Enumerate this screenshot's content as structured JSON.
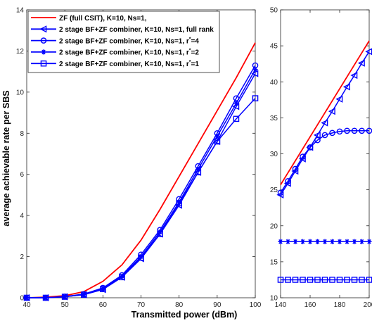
{
  "figure": {
    "ylabel": "average achievable rate per SBS",
    "xlabel": "Transmitted power (dBm)"
  },
  "legend": [
    {
      "label": "ZF (full CSIT), K=10, Ns=1,",
      "color": "#ff0000",
      "marker": "none"
    },
    {
      "label": "2 stage BF+ZF combiner, K=10, Ns=1, full rank",
      "color": "#0000ff",
      "marker": "triangle-left"
    },
    {
      "label_pre": "2 stage BF+ZF combiner, K=10, Ns=1, r",
      "label_sup": "*",
      "label_post": "=4",
      "color": "#0000ff",
      "marker": "circle"
    },
    {
      "label_pre": "2 stage BF+ZF combiner, K=10, Ns=1, r",
      "label_sup": "*",
      "label_post": "=2",
      "color": "#0000ff",
      "marker": "asterisk"
    },
    {
      "label_pre": "2 stage BF+ZF combiner, K=10, Ns=1, r",
      "label_sup": "*",
      "label_post": "=1",
      "color": "#0000ff",
      "marker": "square"
    }
  ],
  "chart_data": [
    {
      "type": "line",
      "legend_position": "top-left",
      "grid": false,
      "xlim": [
        40,
        100
      ],
      "ylim": [
        0,
        14
      ],
      "xticks": [
        40,
        50,
        60,
        70,
        80,
        90,
        100
      ],
      "yticks": [
        0,
        2,
        4,
        6,
        8,
        10,
        12,
        14
      ],
      "series": [
        {
          "name": "ZF (full CSIT), K=10, Ns=1,",
          "color": "#ff0000",
          "marker": "none",
          "x": [
            40,
            45,
            50,
            55,
            60,
            65,
            70,
            75,
            80,
            85,
            90,
            95,
            100
          ],
          "y": [
            0.0,
            0.03,
            0.1,
            0.3,
            0.8,
            1.6,
            2.8,
            4.3,
            5.9,
            7.5,
            9.1,
            10.7,
            12.4
          ]
        },
        {
          "name": "2 stage BF+ZF combiner, K=10, Ns=1, full rank",
          "color": "#0000ff",
          "marker": "triangle-left",
          "x": [
            40,
            45,
            50,
            55,
            60,
            65,
            70,
            75,
            80,
            85,
            90,
            95,
            100
          ],
          "y": [
            0.0,
            0.0,
            0.05,
            0.15,
            0.4,
            1.0,
            1.9,
            3.1,
            4.5,
            6.1,
            7.6,
            9.3,
            10.9
          ]
        },
        {
          "name": "2 stage BF+ZF combiner, K=10, Ns=1, r*=4",
          "color": "#0000ff",
          "marker": "circle",
          "x": [
            40,
            45,
            50,
            55,
            60,
            65,
            70,
            75,
            80,
            85,
            90,
            95,
            100
          ],
          "y": [
            0.0,
            0.0,
            0.06,
            0.18,
            0.48,
            1.1,
            2.1,
            3.3,
            4.8,
            6.4,
            8.0,
            9.7,
            11.3
          ]
        },
        {
          "name": "2 stage BF+ZF combiner, K=10, Ns=1, r*=2",
          "color": "#0000ff",
          "marker": "asterisk",
          "x": [
            40,
            45,
            50,
            55,
            60,
            65,
            70,
            75,
            80,
            85,
            90,
            95,
            100
          ],
          "y": [
            0.0,
            0.0,
            0.05,
            0.16,
            0.44,
            1.05,
            2.0,
            3.2,
            4.65,
            6.25,
            7.85,
            9.45,
            11.1
          ]
        },
        {
          "name": "2 stage BF+ZF combiner, K=10, Ns=1, r*=1",
          "color": "#0000ff",
          "marker": "square",
          "x": [
            40,
            45,
            50,
            55,
            60,
            65,
            70,
            75,
            80,
            85,
            90,
            95,
            100
          ],
          "y": [
            0.0,
            0.0,
            0.05,
            0.15,
            0.42,
            1.0,
            1.95,
            3.1,
            4.6,
            6.1,
            7.6,
            8.7,
            9.7
          ]
        }
      ]
    },
    {
      "type": "line",
      "grid": false,
      "xlim": [
        140,
        200
      ],
      "ylim": [
        10,
        50
      ],
      "xticks": [
        140,
        160,
        180,
        200
      ],
      "yticks": [
        10,
        15,
        20,
        25,
        30,
        35,
        40,
        45,
        50
      ],
      "series": [
        {
          "name": "ZF (full CSIT), K=10, Ns=1,",
          "color": "#ff0000",
          "marker": "none",
          "x": [
            140,
            200
          ],
          "y": [
            25.7,
            45.7
          ]
        },
        {
          "name": "2 stage BF+ZF combiner, K=10, Ns=1, full rank",
          "color": "#0000ff",
          "marker": "triangle-left",
          "x": [
            140,
            145,
            150,
            155,
            160,
            165,
            170,
            175,
            180,
            185,
            190,
            195,
            200
          ],
          "y": [
            24.3,
            25.9,
            27.6,
            29.3,
            30.9,
            32.6,
            34.3,
            35.9,
            37.6,
            39.3,
            40.9,
            42.6,
            44.2
          ]
        },
        {
          "name": "2 stage BF+ZF combiner, K=10, Ns=1, r*=4",
          "color": "#0000ff",
          "marker": "circle",
          "x": [
            140,
            145,
            150,
            155,
            160,
            165,
            170,
            175,
            180,
            185,
            190,
            195,
            200
          ],
          "y": [
            24.6,
            26.2,
            27.9,
            29.6,
            30.9,
            31.9,
            32.6,
            32.9,
            33.1,
            33.2,
            33.2,
            33.2,
            33.2
          ]
        },
        {
          "name": "2 stage BF+ZF combiner, K=10, Ns=1, r*=2",
          "color": "#0000ff",
          "marker": "asterisk",
          "x": [
            140,
            145,
            150,
            155,
            160,
            165,
            170,
            175,
            180,
            185,
            190,
            195,
            200
          ],
          "y": [
            17.8,
            17.8,
            17.8,
            17.8,
            17.8,
            17.8,
            17.8,
            17.8,
            17.8,
            17.8,
            17.8,
            17.8,
            17.8
          ]
        },
        {
          "name": "2 stage BF+ZF combiner, K=10, Ns=1, r*=1",
          "color": "#0000ff",
          "marker": "square",
          "x": [
            140,
            145,
            150,
            155,
            160,
            165,
            170,
            175,
            180,
            185,
            190,
            195,
            200
          ],
          "y": [
            12.5,
            12.5,
            12.5,
            12.5,
            12.5,
            12.5,
            12.5,
            12.5,
            12.5,
            12.5,
            12.5,
            12.5,
            12.5
          ]
        }
      ]
    }
  ]
}
